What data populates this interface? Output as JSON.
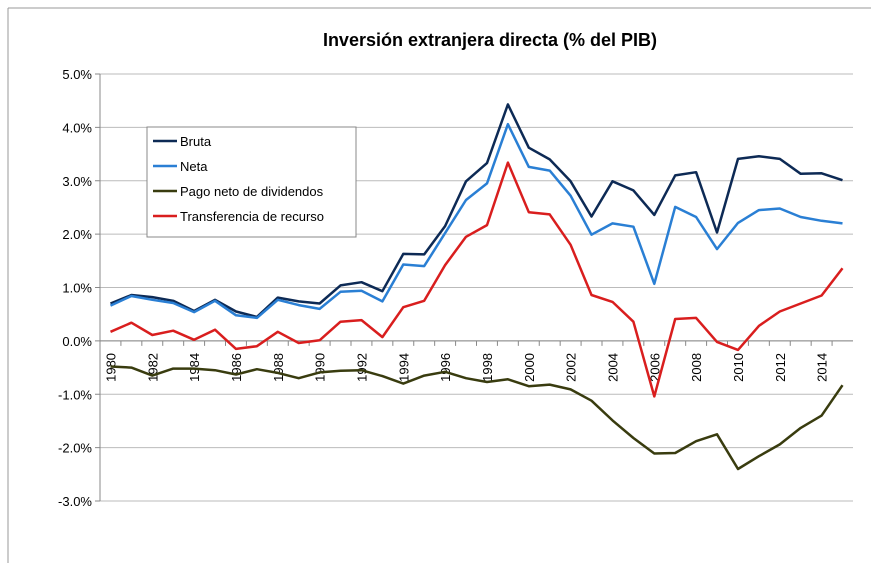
{
  "chart_data": {
    "type": "line",
    "title": "Inversión extranjera directa (% del PIB)",
    "categories": [
      "1980",
      null,
      "1982",
      null,
      "1984",
      null,
      "1986",
      null,
      "1988",
      null,
      "1990",
      null,
      "1992",
      null,
      "1994",
      null,
      "1996",
      null,
      "1998",
      null,
      "2000",
      null,
      "2002",
      null,
      "2004",
      null,
      "2006",
      null,
      "2008",
      null,
      "2010",
      null,
      "2012",
      null,
      "2014",
      null
    ],
    "series": [
      {
        "name": "Bruta",
        "color": "#0d2a55",
        "values": [
          0.7,
          0.86,
          0.82,
          0.75,
          0.56,
          0.77,
          0.55,
          0.45,
          0.81,
          0.74,
          0.7,
          1.04,
          1.1,
          0.93,
          1.63,
          1.62,
          2.15,
          2.99,
          3.33,
          4.43,
          3.62,
          3.4,
          2.99,
          2.33,
          2.99,
          2.82,
          2.36,
          3.1,
          3.16,
          2.03,
          3.41,
          3.46,
          3.41,
          3.13,
          3.14,
          3.01
        ]
      },
      {
        "name": "Neta",
        "color": "#2a7fd4",
        "values": [
          0.66,
          0.84,
          0.77,
          0.71,
          0.54,
          0.75,
          0.48,
          0.43,
          0.77,
          0.67,
          0.6,
          0.92,
          0.94,
          0.74,
          1.43,
          1.4,
          2.02,
          2.64,
          2.95,
          4.06,
          3.26,
          3.19,
          2.72,
          1.99,
          2.2,
          2.14,
          1.07,
          2.51,
          2.32,
          1.72,
          2.21,
          2.45,
          2.48,
          2.32,
          2.25,
          2.2
        ]
      },
      {
        "name": "Pago neto de dividendos",
        "color": "#393c0f",
        "values": [
          -0.48,
          -0.5,
          -0.65,
          -0.52,
          -0.52,
          -0.55,
          -0.63,
          -0.53,
          -0.6,
          -0.7,
          -0.59,
          -0.56,
          -0.55,
          -0.66,
          -0.8,
          -0.65,
          -0.58,
          -0.7,
          -0.77,
          -0.72,
          -0.85,
          -0.82,
          -0.91,
          -1.12,
          -1.49,
          -1.82,
          -2.11,
          -2.1,
          -1.88,
          -1.75,
          -2.4,
          -2.16,
          -1.94,
          -1.63,
          -1.4,
          -0.83
        ]
      },
      {
        "name": "Transferencia de recurso",
        "color": "#d91e1e",
        "values": [
          0.17,
          0.34,
          0.11,
          0.19,
          0.02,
          0.21,
          -0.15,
          -0.1,
          0.17,
          -0.04,
          0.01,
          0.36,
          0.39,
          0.07,
          0.63,
          0.75,
          1.42,
          1.95,
          2.17,
          3.34,
          2.41,
          2.37,
          1.8,
          0.86,
          0.73,
          0.36,
          -1.04,
          0.41,
          0.43,
          -0.02,
          -0.17,
          0.28,
          0.55,
          0.7,
          0.85,
          1.36
        ]
      }
    ],
    "ylim": [
      -3,
      5
    ],
    "yticks": [
      {
        "value": -3,
        "label": "-3.0%"
      },
      {
        "value": -2,
        "label": "-2.0%"
      },
      {
        "value": -1,
        "label": "-1.0%"
      },
      {
        "value": 0,
        "label": "0.0%"
      },
      {
        "value": 1,
        "label": "1.0%"
      },
      {
        "value": 2,
        "label": "2.0%"
      },
      {
        "value": 3,
        "label": "3.0%"
      },
      {
        "value": 4,
        "label": "4.0%"
      },
      {
        "value": 5,
        "label": "5.0%"
      }
    ],
    "grid": true,
    "legend": "upper left"
  }
}
